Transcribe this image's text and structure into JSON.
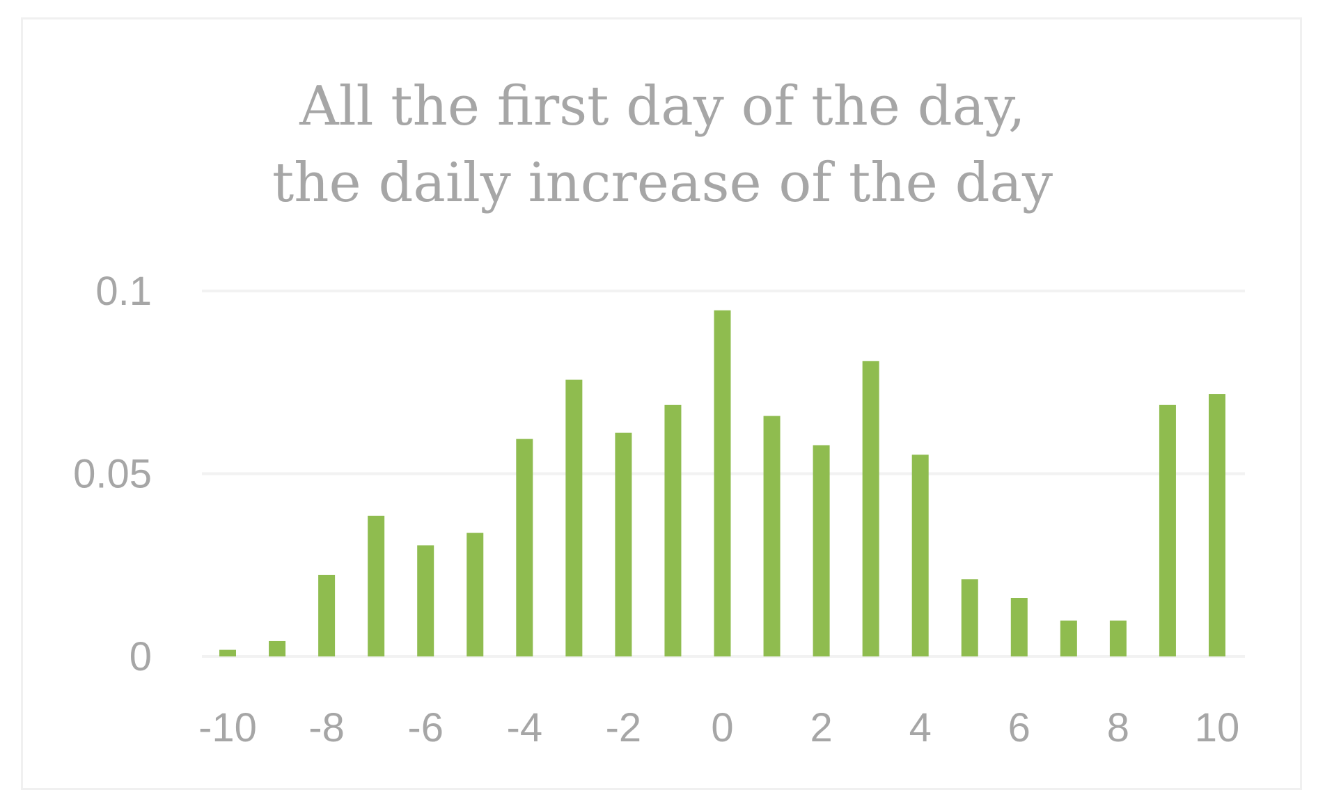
{
  "chart_data": {
    "type": "bar",
    "title_lines": [
      "All the first day of the day,",
      "the daily increase of the day"
    ],
    "categories": [
      -10,
      -9,
      -8,
      -7,
      -6,
      -5,
      -4,
      -3,
      -2,
      -1,
      0,
      1,
      2,
      3,
      4,
      5,
      6,
      7,
      8,
      9,
      10
    ],
    "values": [
      0.0018,
      0.0042,
      0.0223,
      0.0385,
      0.0304,
      0.0338,
      0.0595,
      0.0757,
      0.0612,
      0.0688,
      0.0947,
      0.0658,
      0.0578,
      0.0808,
      0.0552,
      0.0211,
      0.016,
      0.0098,
      0.0098,
      0.0688,
      0.0718
    ],
    "xticks": [
      "-10",
      "-8",
      "-6",
      "-4",
      "-2",
      "0",
      "2",
      "4",
      "6",
      "8",
      "10"
    ],
    "yticks": [
      "0",
      "0.05",
      "0.1"
    ],
    "ylim": [
      0,
      0.1
    ],
    "xlabel": "",
    "ylabel": "",
    "grid": true,
    "bar_color": "#8fbc4f",
    "gridline_color": "#f2f2f2",
    "text_color": "#a6a6a6"
  }
}
